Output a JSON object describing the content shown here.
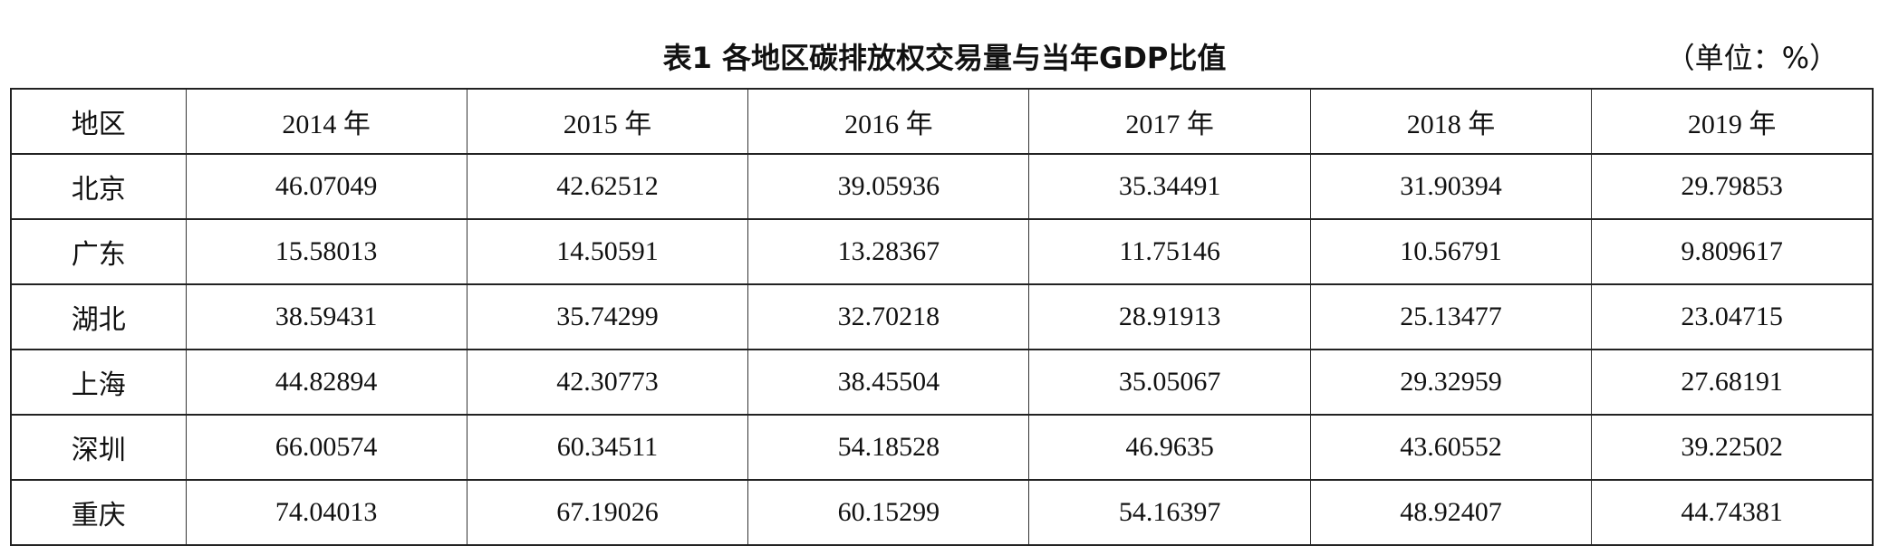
{
  "header": {
    "title": "表1  各地区碳排放权交易量与当年GDP比值",
    "unit": "（单位：%）"
  },
  "table": {
    "columns": [
      "地区",
      "2014 年",
      "2015 年",
      "2016 年",
      "2017 年",
      "2018 年",
      "2019 年"
    ],
    "rows": [
      [
        "北京",
        "46.07049",
        "42.62512",
        "39.05936",
        "35.34491",
        "31.90394",
        "29.79853"
      ],
      [
        "广东",
        "15.58013",
        "14.50591",
        "13.28367",
        "11.75146",
        "10.56791",
        "9.809617"
      ],
      [
        "湖北",
        "38.59431",
        "35.74299",
        "32.70218",
        "28.91913",
        "25.13477",
        "23.04715"
      ],
      [
        "上海",
        "44.82894",
        "42.30773",
        "38.45504",
        "35.05067",
        "29.32959",
        "27.68191"
      ],
      [
        "深圳",
        "66.00574",
        "60.34511",
        "54.18528",
        "46.9635",
        "43.60552",
        "39.22502"
      ],
      [
        "重庆",
        "74.04013",
        "67.19026",
        "60.15299",
        "54.16397",
        "48.92407",
        "44.74381"
      ]
    ]
  }
}
